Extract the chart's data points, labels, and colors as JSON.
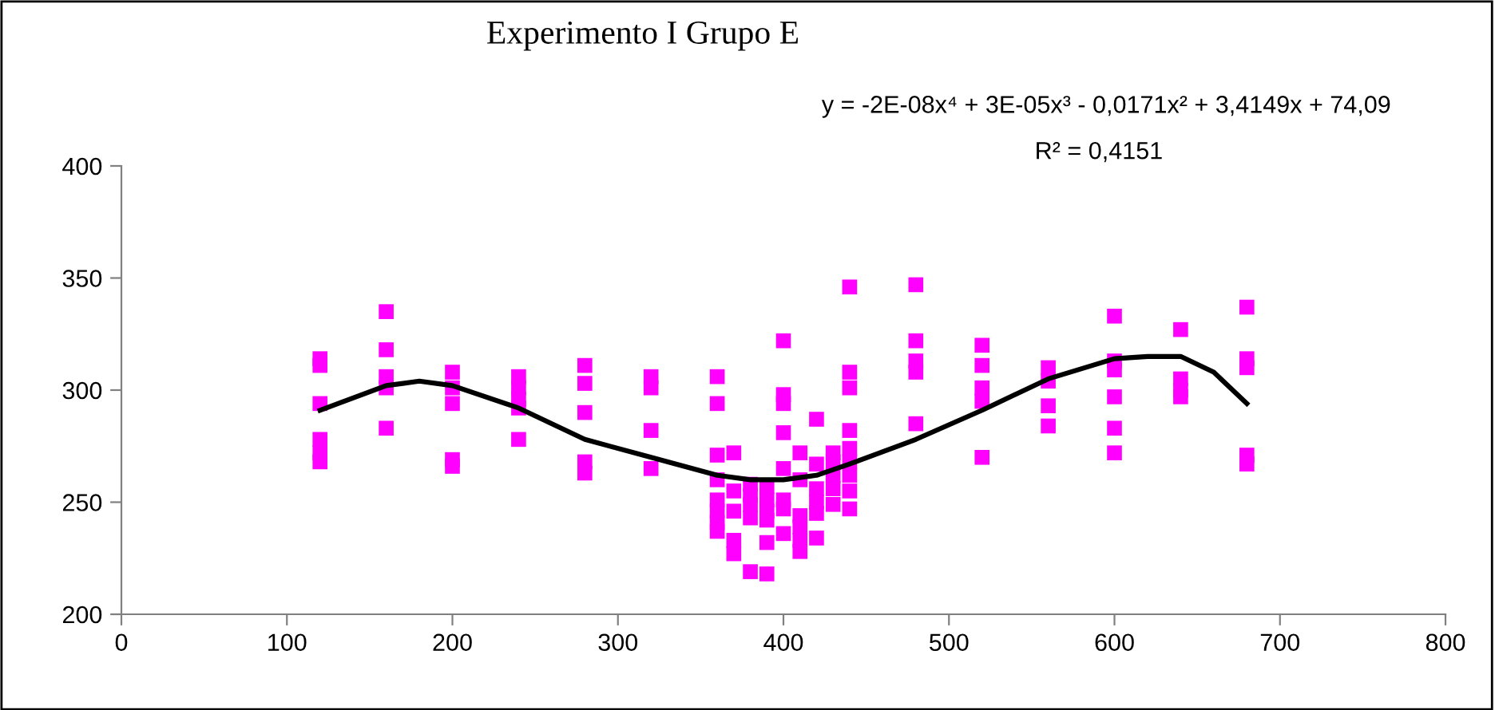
{
  "chart_data": {
    "type": "scatter",
    "title": "Experimento I Grupo E",
    "annotations": [
      "y = -2E-08x⁴ + 3E-05x³ - 0,0171x² + 3,4149x + 74,09",
      "R² = 0,4151"
    ],
    "xlim": [
      0,
      800
    ],
    "xticks": [
      0,
      100,
      200,
      300,
      400,
      500,
      600,
      700,
      800
    ],
    "ylim": [
      200,
      400
    ],
    "yticks": [
      200,
      250,
      300,
      350,
      400
    ],
    "grid": false,
    "legend": false,
    "series": [
      {
        "marker": "square",
        "color": "#ff00ff",
        "x": [
          120,
          120,
          120,
          120,
          120,
          120,
          160,
          160,
          160,
          160,
          160,
          200,
          200,
          200,
          200,
          200,
          240,
          240,
          240,
          240,
          240,
          280,
          280,
          280,
          280,
          280,
          320,
          320,
          320,
          320,
          360,
          360,
          360,
          360,
          360,
          360,
          360,
          360,
          370,
          370,
          370,
          370,
          370,
          380,
          380,
          380,
          380,
          380,
          390,
          390,
          390,
          390,
          390,
          390,
          400,
          400,
          400,
          400,
          400,
          400,
          400,
          400,
          410,
          410,
          410,
          410,
          410,
          410,
          420,
          420,
          420,
          420,
          420,
          420,
          430,
          430,
          430,
          430,
          430,
          440,
          440,
          440,
          440,
          440,
          440,
          440,
          440,
          440,
          480,
          480,
          480,
          480,
          480,
          520,
          520,
          520,
          520,
          520,
          560,
          560,
          560,
          560,
          600,
          600,
          600,
          600,
          600,
          600,
          640,
          640,
          640,
          640,
          680,
          680,
          680,
          680,
          680
        ],
        "values": [
          314,
          311,
          294,
          278,
          272,
          268,
          335,
          318,
          306,
          301,
          283,
          308,
          301,
          294,
          269,
          266,
          306,
          301,
          296,
          292,
          278,
          311,
          303,
          290,
          268,
          263,
          306,
          301,
          282,
          265,
          306,
          294,
          271,
          260,
          251,
          246,
          241,
          237,
          272,
          255,
          246,
          233,
          227,
          258,
          253,
          249,
          243,
          219,
          257,
          251,
          246,
          242,
          232,
          218,
          322,
          298,
          294,
          281,
          265,
          251,
          247,
          236,
          272,
          260,
          244,
          239,
          233,
          228,
          287,
          267,
          256,
          250,
          245,
          234,
          272,
          268,
          262,
          256,
          249,
          346,
          308,
          301,
          282,
          274,
          268,
          262,
          255,
          247,
          347,
          322,
          313,
          308,
          285,
          320,
          311,
          301,
          295,
          270,
          310,
          304,
          293,
          284,
          333,
          313,
          309,
          297,
          283,
          272,
          327,
          305,
          300,
          297,
          337,
          314,
          310,
          271,
          267
        ]
      },
      {
        "type": "line",
        "marker": "none",
        "color": "#000000",
        "x": [
          120,
          160,
          180,
          200,
          240,
          280,
          320,
          360,
          380,
          400,
          420,
          440,
          480,
          520,
          560,
          600,
          620,
          640,
          660,
          680
        ],
        "values": [
          291,
          302,
          304,
          302,
          292,
          278,
          270,
          262,
          260,
          260,
          262,
          267,
          278,
          291,
          305,
          314,
          315,
          315,
          308,
          294
        ]
      }
    ]
  }
}
